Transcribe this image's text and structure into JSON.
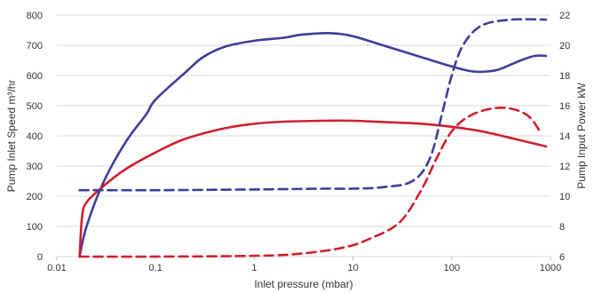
{
  "chart_data": {
    "type": "line",
    "title": "",
    "xlabel": "Inlet pressure (mbar)",
    "ylabel": "Pump Inlet Speed m³/hr",
    "y2label": "Pump Input Power kW",
    "x_scale": "log",
    "xlim": [
      0.01,
      1000
    ],
    "ylim": [
      0,
      800
    ],
    "y2lim": [
      6,
      22
    ],
    "grid": "horizontal",
    "legend": "none",
    "x_ticks": [
      "0.01",
      "0.1",
      "1",
      "10",
      "100",
      "1000"
    ],
    "x_tick_values": [
      0.01,
      0.1,
      1,
      10,
      100,
      1000
    ],
    "y_ticks": [
      "0",
      "100",
      "200",
      "300",
      "400",
      "500",
      "600",
      "700",
      "800"
    ],
    "y_tick_values": [
      0,
      100,
      200,
      300,
      400,
      500,
      600,
      700,
      800
    ],
    "y2_ticks": [
      "6",
      "8",
      "10",
      "12",
      "14",
      "16",
      "18",
      "20",
      "22"
    ],
    "y2_tick_values": [
      6,
      8,
      10,
      12,
      14,
      16,
      18,
      20,
      22
    ],
    "series": [
      {
        "axis": "left",
        "color": "#3b3f98",
        "style": "solid",
        "points": [
          [
            0.017,
            0
          ],
          [
            0.02,
            100
          ],
          [
            0.03,
            250
          ],
          [
            0.05,
            380
          ],
          [
            0.08,
            470
          ],
          [
            0.1,
            520
          ],
          [
            0.2,
            610
          ],
          [
            0.3,
            660
          ],
          [
            0.5,
            695
          ],
          [
            1,
            715
          ],
          [
            2,
            725
          ],
          [
            3,
            735
          ],
          [
            6,
            740
          ],
          [
            10,
            730
          ],
          [
            20,
            700
          ],
          [
            50,
            660
          ],
          [
            100,
            630
          ],
          [
            150,
            615
          ],
          [
            200,
            612
          ],
          [
            300,
            620
          ],
          [
            500,
            650
          ],
          [
            700,
            665
          ],
          [
            900,
            665
          ]
        ]
      },
      {
        "axis": "left",
        "color": "#d0202e",
        "style": "solid",
        "points": [
          [
            0.017,
            0
          ],
          [
            0.018,
            130
          ],
          [
            0.02,
            180
          ],
          [
            0.03,
            235
          ],
          [
            0.05,
            290
          ],
          [
            0.1,
            345
          ],
          [
            0.2,
            390
          ],
          [
            0.5,
            425
          ],
          [
            1,
            440
          ],
          [
            2,
            447
          ],
          [
            5,
            450
          ],
          [
            10,
            450
          ],
          [
            20,
            446
          ],
          [
            50,
            440
          ],
          [
            100,
            430
          ],
          [
            200,
            415
          ],
          [
            500,
            385
          ],
          [
            900,
            365
          ]
        ]
      },
      {
        "axis": "right",
        "color": "#3b3f98",
        "style": "dashed",
        "points": [
          [
            0.017,
            10.4
          ],
          [
            0.1,
            10.4
          ],
          [
            1,
            10.45
          ],
          [
            5,
            10.5
          ],
          [
            10,
            10.5
          ],
          [
            20,
            10.6
          ],
          [
            40,
            11.0
          ],
          [
            60,
            12.5
          ],
          [
            80,
            15.5
          ],
          [
            100,
            18.0
          ],
          [
            130,
            20.0
          ],
          [
            200,
            21.3
          ],
          [
            400,
            21.7
          ],
          [
            900,
            21.7
          ]
        ]
      },
      {
        "axis": "right",
        "color": "#d0202e",
        "style": "dashed",
        "points": [
          [
            0.017,
            6.0
          ],
          [
            0.1,
            6.0
          ],
          [
            1,
            6.05
          ],
          [
            3,
            6.2
          ],
          [
            8,
            6.6
          ],
          [
            15,
            7.2
          ],
          [
            30,
            8.3
          ],
          [
            50,
            10.5
          ],
          [
            70,
            12.5
          ],
          [
            100,
            14.3
          ],
          [
            150,
            15.3
          ],
          [
            250,
            15.8
          ],
          [
            400,
            15.8
          ],
          [
            600,
            15.3
          ],
          [
            800,
            14.2
          ]
        ]
      }
    ]
  }
}
